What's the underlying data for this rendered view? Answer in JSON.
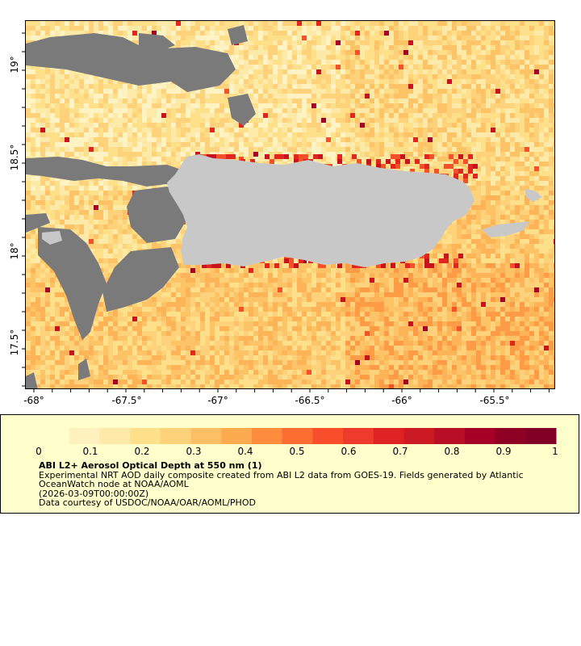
{
  "map": {
    "lon_ticks": [
      "-68°",
      "-67.5°",
      "-67°",
      "-66.5°",
      "-66°",
      "-65.5°"
    ],
    "lat_ticks": [
      "19°",
      "18.5°",
      "18°",
      "17.5°"
    ],
    "colors": {
      "no_data": "#7a7a7a",
      "land": "#c8c8c8"
    }
  },
  "legend": {
    "colorbar_ticks": [
      "0",
      "0.1",
      "0.2",
      "0.3",
      "0.4",
      "0.5",
      "0.6",
      "0.7",
      "0.8",
      "0.9",
      "1"
    ],
    "colorbar_colors": [
      "#ffffcc",
      "#fff2be",
      "#ffe9a8",
      "#fee08b",
      "#fed27a",
      "#fdbf63",
      "#fdab4f",
      "#fd8d3c",
      "#fc6d32",
      "#f84f2a",
      "#ef3b2c",
      "#df2224",
      "#cb1a23",
      "#b80f26",
      "#a60026",
      "#8e0024",
      "#800026"
    ],
    "title": "ABI L2+ Aerosol Optical Depth at 550 nm (1)",
    "line1": "Experimental NRT AOD daily composite created from ABI L2 data from GOES-19. Fields generated by Atlantic",
    "line2": "OceanWatch node at NOAA/AOML",
    "line3": "(2026-03-09T00:00:00Z)",
    "line4": "Data courtesy of USDOC/NOAA/OAR/AOML/PHOD"
  }
}
